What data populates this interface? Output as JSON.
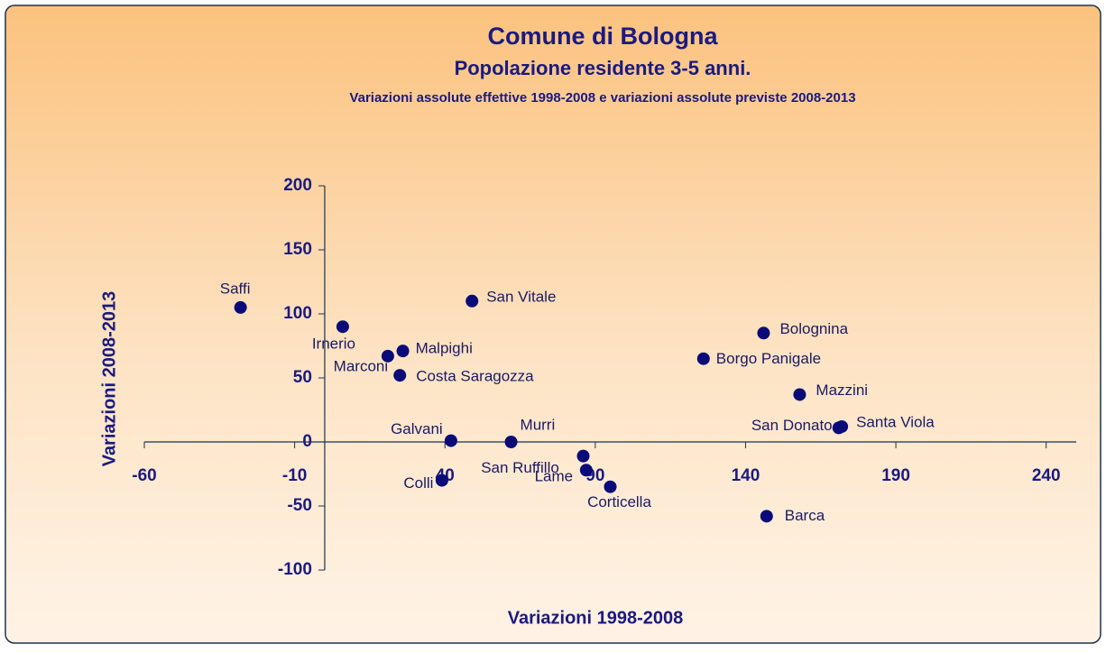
{
  "chart_data": {
    "type": "scatter",
    "title": "Comune di Bologna",
    "subtitle": "Popolazione residente 3-5 anni.",
    "caption": "Variazioni assolute effettive 1998-2008 e variazioni assolute previste 2008-2013",
    "x_label": "Variazioni 1998-2008",
    "y_label": "Variazioni 2008-2013",
    "labels": [
      "Saffi",
      "Irnerio",
      "Marconi",
      "Malpighi",
      "Costa Saragozza",
      "San Vitale",
      "Galvani",
      "Colli",
      "Murri",
      "San Ruffillo",
      "Lame",
      "Corticella",
      "Borgo Panigale",
      "Bolognina",
      "Mazzini",
      "San Donato",
      "Santa Viola",
      "Barca"
    ],
    "x": [
      -28,
      6,
      21,
      26,
      25,
      49,
      42,
      39,
      62,
      86,
      87,
      95,
      126,
      146,
      158,
      171,
      172,
      147
    ],
    "y": [
      105,
      90,
      67,
      71,
      52,
      110,
      1,
      -30,
      0,
      -11,
      -22,
      -35,
      65,
      85,
      37,
      11,
      12,
      -58
    ],
    "color": "#0a0a78",
    "xlim": [
      -60,
      250
    ],
    "xticks": [
      -60,
      -10,
      40,
      90,
      140,
      190,
      240
    ],
    "ylim": [
      -100,
      200
    ],
    "yticks": [
      -100,
      -50,
      0,
      50,
      100,
      150,
      200
    ]
  }
}
